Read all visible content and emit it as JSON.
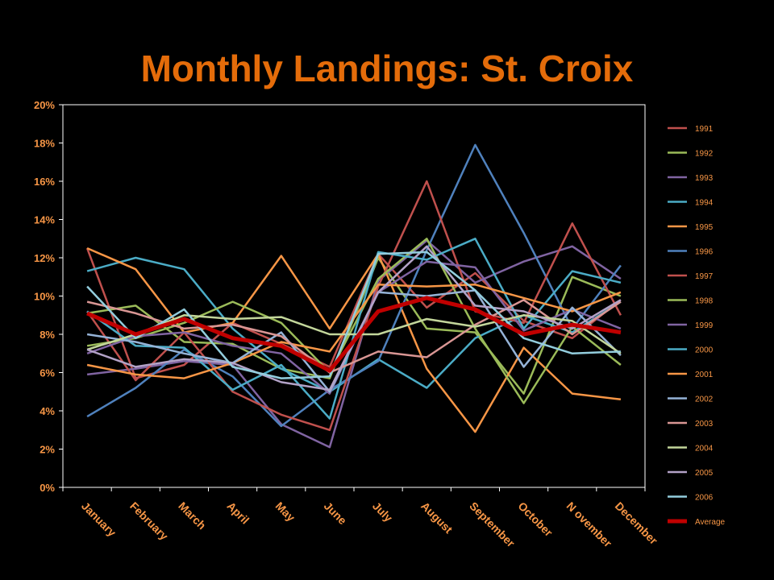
{
  "theme": {
    "background": "#000000",
    "title_color": "#E46C0A",
    "label_color": "#F79646",
    "axis_color": "#FFFFFF"
  },
  "chart_data": {
    "type": "line",
    "title": "Monthly Landings: St. Croix",
    "xlabel": "",
    "ylabel": "",
    "ylim": [
      0,
      20
    ],
    "yticks": [
      "0%",
      "2%",
      "4%",
      "6%",
      "8%",
      "10%",
      "12%",
      "14%",
      "16%",
      "18%",
      "20%"
    ],
    "grid": false,
    "legend": "right",
    "categories": [
      "January",
      "February",
      "March",
      "April",
      "May",
      "June",
      "July",
      "August",
      "September",
      "October",
      "N ovember",
      "December"
    ],
    "series": [
      {
        "name": "1991",
        "color": "#C0504D",
        "values": [
          12.5,
          5.7,
          6.4,
          8.6,
          7.5,
          6.3,
          12.2,
          9.4,
          11.2,
          8.7,
          7.8,
          9.8
        ]
      },
      {
        "name": "1992",
        "color": "#9BBB59",
        "values": [
          9.1,
          9.5,
          7.6,
          7.5,
          6.2,
          5.7,
          12.0,
          8.3,
          8.1,
          4.9,
          11.0,
          10.0
        ]
      },
      {
        "name": "1993",
        "color": "#8064A2",
        "values": [
          5.9,
          6.2,
          6.6,
          6.4,
          3.3,
          2.1,
          10.8,
          12.9,
          10.7,
          11.8,
          12.6,
          10.9
        ]
      },
      {
        "name": "1994",
        "color": "#4BACC6",
        "values": [
          11.3,
          12.0,
          11.4,
          8.3,
          6.2,
          5.0,
          6.7,
          5.2,
          7.8,
          9.0,
          8.1,
          9.7
        ]
      },
      {
        "name": "1995",
        "color": "#F79646",
        "values": [
          12.5,
          11.4,
          8.1,
          8.6,
          12.1,
          8.3,
          12.2,
          6.2,
          2.9,
          7.3,
          4.9,
          4.6
        ]
      },
      {
        "name": "1996",
        "color": "#4F81BD",
        "values": [
          3.7,
          5.2,
          7.2,
          5.8,
          3.2,
          5.1,
          6.6,
          12.4,
          17.9,
          13.3,
          8.3,
          11.6
        ]
      },
      {
        "name": "1997",
        "color": "#C0504D",
        "values": [
          9.2,
          5.6,
          8.1,
          5.0,
          3.8,
          3.0,
          10.5,
          16.0,
          9.2,
          8.6,
          13.8,
          9.0
        ]
      },
      {
        "name": "1998",
        "color": "#9BBB59",
        "values": [
          7.4,
          7.8,
          8.6,
          9.7,
          8.6,
          6.0,
          10.9,
          13.0,
          8.3,
          4.4,
          8.4,
          6.4
        ]
      },
      {
        "name": "1999",
        "color": "#8064A2",
        "values": [
          7.0,
          7.9,
          8.1,
          7.4,
          7.0,
          4.9,
          10.2,
          11.8,
          11.5,
          8.2,
          9.3,
          8.3
        ]
      },
      {
        "name": "2000",
        "color": "#4BACC6",
        "values": [
          9.2,
          7.4,
          7.3,
          5.1,
          6.4,
          3.6,
          12.3,
          11.9,
          13.0,
          8.3,
          11.3,
          10.7
        ]
      },
      {
        "name": "2001",
        "color": "#F79646",
        "values": [
          6.4,
          5.9,
          5.7,
          6.5,
          7.6,
          7.1,
          10.6,
          10.5,
          10.6,
          9.9,
          9.2,
          10.2
        ]
      },
      {
        "name": "2002",
        "color": "#95B3D7",
        "values": [
          8.0,
          7.6,
          7.0,
          6.5,
          8.1,
          5.0,
          10.2,
          10.0,
          10.3,
          6.3,
          9.4,
          6.9
        ]
      },
      {
        "name": "2003",
        "color": "#D99694",
        "values": [
          9.7,
          9.1,
          8.3,
          8.5,
          7.9,
          6.0,
          7.1,
          6.8,
          8.5,
          9.8,
          8.0,
          9.7
        ]
      },
      {
        "name": "2004",
        "color": "#C3D69B",
        "values": [
          7.2,
          8.0,
          9.0,
          8.8,
          8.9,
          8.0,
          8.0,
          8.8,
          8.4,
          9.0,
          8.7,
          7.0
        ]
      },
      {
        "name": "2005",
        "color": "#B3A2C7",
        "values": [
          7.2,
          6.3,
          6.7,
          6.5,
          5.5,
          5.1,
          10.2,
          12.6,
          9.5,
          9.2,
          8.3,
          9.8
        ]
      },
      {
        "name": "2006",
        "color": "#93CDDD",
        "values": [
          10.5,
          7.8,
          9.3,
          6.3,
          5.7,
          5.8,
          12.2,
          12.3,
          10.3,
          7.8,
          7.0,
          7.1
        ]
      },
      {
        "name": "Average",
        "color": "#C00000",
        "values": [
          9.1,
          8.0,
          8.8,
          7.8,
          7.4,
          6.1,
          9.2,
          9.9,
          9.3,
          8.0,
          8.5,
          8.1
        ]
      }
    ]
  }
}
